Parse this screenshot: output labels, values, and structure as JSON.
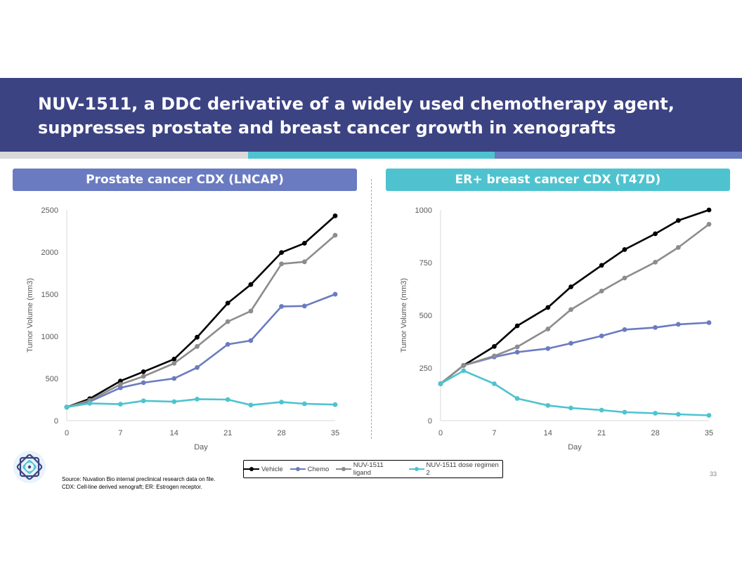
{
  "slide": {
    "title_line1": "NUV-1511, a DDC derivative of a widely used chemotherapy agent,",
    "title_line2": "suppresses prostate and breast cancer growth in xenografts",
    "page_number": "33",
    "source_line1": "Source: Nuvation Bio internal preclinical research data on file.",
    "source_line2": "CDX: Cell-line derived xenograft; ER: Estrogen receptor.",
    "logo": "nuvation-bio-logo-icon",
    "colors": {
      "header": "#3c4383",
      "stripe_gray": "#d9d9d9",
      "stripe_teal": "#4ec3cf",
      "stripe_blue": "#6a7bc1",
      "vehicle": "#000000",
      "chemo": "#6a7bc1",
      "ligand": "#8c8c8c",
      "dose_regimen": "#4ec3cf"
    }
  },
  "panels": {
    "left_title": "Prostate cancer CDX (LNCAP)",
    "right_title": "ER+ breast cancer CDX (T47D)"
  },
  "legend": {
    "items": [
      "Vehicle",
      "Chemo",
      "NUV-1511 ligand",
      "NUV-1511 dose regimen 2"
    ]
  },
  "chart_data": [
    {
      "type": "line",
      "title": "Prostate cancer CDX (LNCAP)",
      "xlabel": "Day",
      "ylabel": "Tumor Volume (mm3)",
      "xlim": [
        0,
        35
      ],
      "ylim": [
        0,
        2500
      ],
      "xticks": [
        0,
        7,
        14,
        21,
        28,
        35
      ],
      "yticks": [
        0,
        500,
        1000,
        1500,
        2000,
        2500
      ],
      "x": [
        0,
        3,
        7,
        10,
        14,
        17,
        21,
        24,
        28,
        31,
        35
      ],
      "series": [
        {
          "name": "Vehicle",
          "values": [
            160,
            260,
            470,
            580,
            730,
            990,
            1395,
            1615,
            1995,
            2105,
            2430
          ]
        },
        {
          "name": "Chemo",
          "values": [
            160,
            225,
            390,
            450,
            500,
            630,
            905,
            950,
            1355,
            1360,
            1500
          ]
        },
        {
          "name": "NUV-1511 ligand",
          "values": [
            160,
            240,
            430,
            525,
            680,
            880,
            1175,
            1300,
            1860,
            1885,
            2200
          ]
        },
        {
          "name": "NUV-1511 dose regimen 2",
          "values": [
            160,
            205,
            195,
            235,
            225,
            255,
            250,
            185,
            220,
            200,
            190
          ]
        }
      ]
    },
    {
      "type": "line",
      "title": "ER+ breast cancer CDX (T47D)",
      "xlabel": "Day",
      "ylabel": "Tumor Volume (mm3)",
      "xlim": [
        0,
        35
      ],
      "ylim": [
        0,
        1000
      ],
      "xticks": [
        0,
        7,
        14,
        21,
        28,
        35
      ],
      "yticks": [
        0,
        250,
        500,
        750,
        1000
      ],
      "x": [
        0,
        3,
        7,
        10,
        14,
        17,
        21,
        24,
        28,
        31,
        35
      ],
      "series": [
        {
          "name": "Vehicle",
          "values": [
            175,
            262,
            352,
            450,
            537,
            635,
            737,
            812,
            887,
            950,
            1000
          ]
        },
        {
          "name": "Chemo",
          "values": [
            175,
            262,
            302,
            325,
            342,
            367,
            402,
            432,
            442,
            457,
            465
          ]
        },
        {
          "name": "NUV-1511 ligand",
          "values": [
            175,
            262,
            307,
            350,
            435,
            527,
            615,
            677,
            752,
            822,
            932
          ]
        },
        {
          "name": "NUV-1511 dose regimen 2",
          "values": [
            175,
            237,
            175,
            105,
            72,
            60,
            50,
            40,
            35,
            30,
            25
          ]
        }
      ]
    }
  ]
}
